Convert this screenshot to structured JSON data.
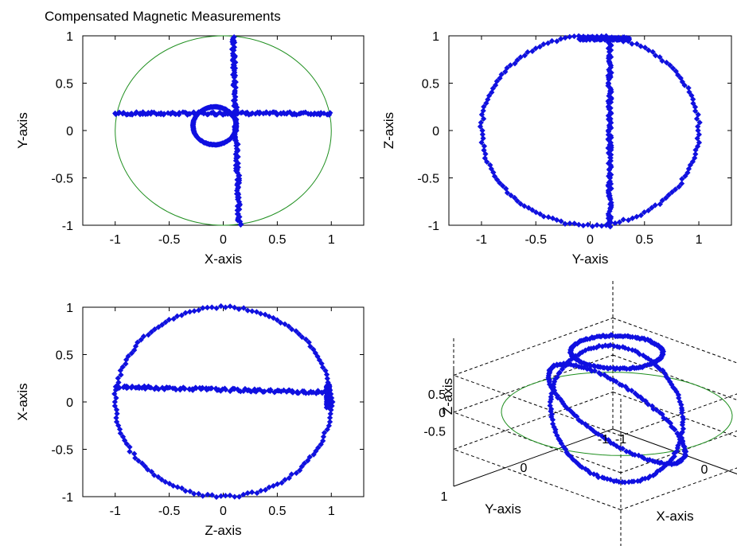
{
  "figure": {
    "title": "Compensated Magnetic Measurements",
    "colors": {
      "data": "#1010e0",
      "sphere": "#1f8f1f",
      "axes": "#000000",
      "box": "#000000"
    },
    "marker": "diamond"
  },
  "chart_data": [
    {
      "type": "scatter",
      "title": "Compensated Magnetic Measurements",
      "xlabel": "X-axis",
      "ylabel": "Y-axis",
      "xlim": [
        -1.3,
        1.3
      ],
      "ylim": [
        -1,
        1
      ],
      "xticks": [
        "-1",
        "-0.5",
        "0",
        "0.5",
        "1"
      ],
      "yticks": [
        "1",
        "0.5",
        "0",
        "-0.5",
        "-1"
      ],
      "reference_circle": {
        "center": [
          0,
          0
        ],
        "radius": 1
      },
      "segments": [
        {
          "shape": "line",
          "from": [
            -1.0,
            0.18
          ],
          "to": [
            1.0,
            0.18
          ]
        },
        {
          "shape": "line",
          "from": [
            0.09,
            1.0
          ],
          "to": [
            0.15,
            -1.0
          ]
        },
        {
          "shape": "circle",
          "center": [
            -0.08,
            0.05
          ],
          "radius": 0.2
        }
      ]
    },
    {
      "type": "scatter",
      "title": "",
      "xlabel": "Y-axis",
      "ylabel": "Z-axis",
      "xlim": [
        -1.3,
        1.3
      ],
      "ylim": [
        -1,
        1
      ],
      "xticks": [
        "-1",
        "-0.5",
        "0",
        "0.5",
        "1"
      ],
      "yticks": [
        "1",
        "0.5",
        "0",
        "-0.5",
        "-1"
      ],
      "reference_circle": {
        "center": [
          0,
          0
        ],
        "radius": 1
      },
      "segments": [
        {
          "shape": "circle",
          "center": [
            0,
            0
          ],
          "radius": 1
        },
        {
          "shape": "line",
          "from": [
            0.18,
            0.97
          ],
          "to": [
            0.18,
            -1.0
          ]
        },
        {
          "shape": "line",
          "from": [
            -0.1,
            0.97
          ],
          "to": [
            0.35,
            0.97
          ]
        }
      ]
    },
    {
      "type": "scatter",
      "title": "",
      "xlabel": "Z-axis",
      "ylabel": "X-axis",
      "xlim": [
        -1.3,
        1.3
      ],
      "ylim": [
        -1,
        1
      ],
      "xticks": [
        "-1",
        "-0.5",
        "0",
        "0.5",
        "1"
      ],
      "yticks": [
        "1",
        "0.5",
        "0",
        "-0.5",
        "-1"
      ],
      "reference_circle": {
        "center": [
          0,
          0
        ],
        "radius": 1
      },
      "segments": [
        {
          "shape": "circle",
          "center": [
            0,
            0
          ],
          "radius": 1
        },
        {
          "shape": "line",
          "from": [
            -1.0,
            0.16
          ],
          "to": [
            0.97,
            0.1
          ]
        },
        {
          "shape": "line",
          "from": [
            0.97,
            0.18
          ],
          "to": [
            0.97,
            -0.05
          ]
        }
      ]
    },
    {
      "type": "scatter3d",
      "title": "",
      "xlabel": "X-axis",
      "ylabel": "Y-axis",
      "zlabel": "Z-axis",
      "xticks": [
        "-1",
        "0",
        "1"
      ],
      "yticks": [
        "1",
        "0",
        "-1"
      ],
      "zticks": [
        "0.5",
        "0",
        "-0.5"
      ],
      "reference_circle": {
        "center": [
          0,
          0,
          0
        ],
        "radius": 1
      },
      "rings": [
        {
          "plane": "xz",
          "tilt_deg": 20,
          "radius": 1
        },
        {
          "plane": "yz",
          "tilt_deg": -20,
          "radius": 1
        },
        {
          "plane": "xy",
          "offset_z": 0.75,
          "radius": 0.4
        }
      ]
    }
  ]
}
